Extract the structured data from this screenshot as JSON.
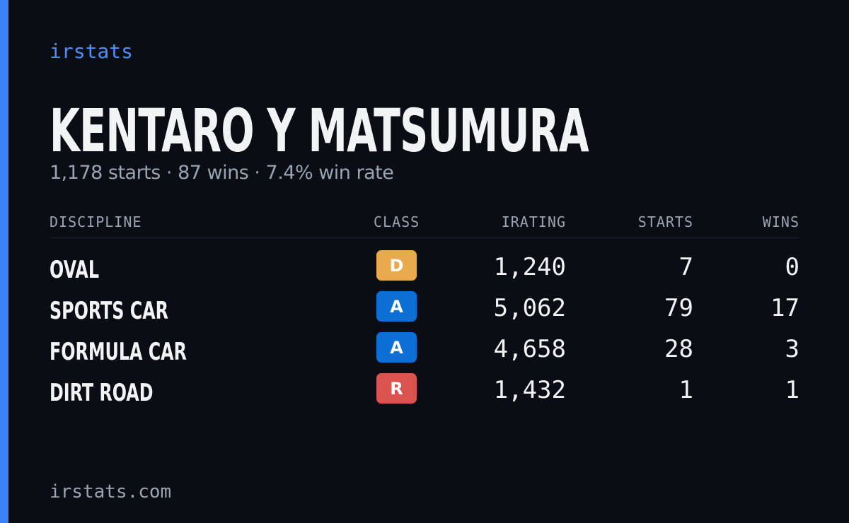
{
  "brand": "irstats",
  "header": {
    "title": "KENTARO Y MATSUMURA",
    "subtitle": "1,178 starts · 87 wins · 7.4% win rate"
  },
  "table": {
    "columns": [
      "DISCIPLINE",
      "CLASS",
      "IRATING",
      "STARTS",
      "WINS"
    ],
    "rows": [
      {
        "discipline": "OVAL",
        "class": "D",
        "class_color": "#e9a94d",
        "irating": "1,240",
        "starts": "7",
        "wins": "0"
      },
      {
        "discipline": "SPORTS CAR",
        "class": "A",
        "class_color": "#0b6fd6",
        "irating": "5,062",
        "starts": "79",
        "wins": "17"
      },
      {
        "discipline": "FORMULA CAR",
        "class": "A",
        "class_color": "#0b6fd6",
        "irating": "4,658",
        "starts": "28",
        "wins": "3"
      },
      {
        "discipline": "DIRT ROAD",
        "class": "R",
        "class_color": "#d9534f",
        "irating": "1,432",
        "starts": "1",
        "wins": "1"
      }
    ]
  },
  "footer": "irstats.com"
}
